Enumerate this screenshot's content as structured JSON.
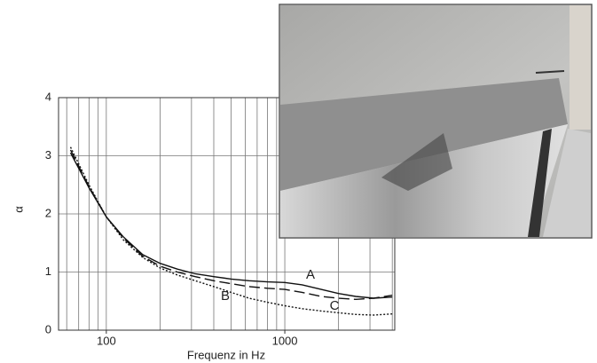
{
  "chart_data": {
    "type": "line",
    "xlabel": "Frequenz in Hz",
    "ylabel": "α",
    "xscale": "log",
    "x": [
      63,
      80,
      100,
      125,
      160,
      200,
      250,
      315,
      400,
      500,
      630,
      800,
      1000,
      1250,
      1600,
      2000,
      2500,
      3150,
      4000
    ],
    "series": [
      {
        "name": "A",
        "color": "#111111",
        "style": "solid",
        "values": [
          3.05,
          2.45,
          1.95,
          1.6,
          1.3,
          1.15,
          1.05,
          0.97,
          0.92,
          0.88,
          0.85,
          0.83,
          0.82,
          0.78,
          0.7,
          0.63,
          0.58,
          0.55,
          0.57
        ]
      },
      {
        "name": "B",
        "color": "#111111",
        "style": "dashed",
        "values": [
          3.1,
          2.47,
          1.95,
          1.58,
          1.27,
          1.1,
          1.0,
          0.92,
          0.85,
          0.8,
          0.75,
          0.72,
          0.7,
          0.65,
          0.58,
          0.55,
          0.53,
          0.55,
          0.6
        ]
      },
      {
        "name": "C",
        "color": "#111111",
        "style": "dotted",
        "values": [
          3.15,
          2.5,
          1.95,
          1.55,
          1.25,
          1.07,
          0.95,
          0.85,
          0.75,
          0.65,
          0.55,
          0.48,
          0.42,
          0.37,
          0.33,
          0.3,
          0.27,
          0.26,
          0.28
        ]
      }
    ],
    "xlim": [
      54,
      4130
    ],
    "xticks": [
      100,
      1000
    ],
    "xgrid": [
      60,
      70,
      80,
      90,
      100,
      200,
      300,
      400,
      500,
      600,
      700,
      800,
      900,
      1000,
      2000,
      3000,
      4000
    ],
    "ylim": [
      0,
      4
    ],
    "yticks": [
      0,
      1,
      2,
      3,
      4
    ],
    "grid": true
  }
}
